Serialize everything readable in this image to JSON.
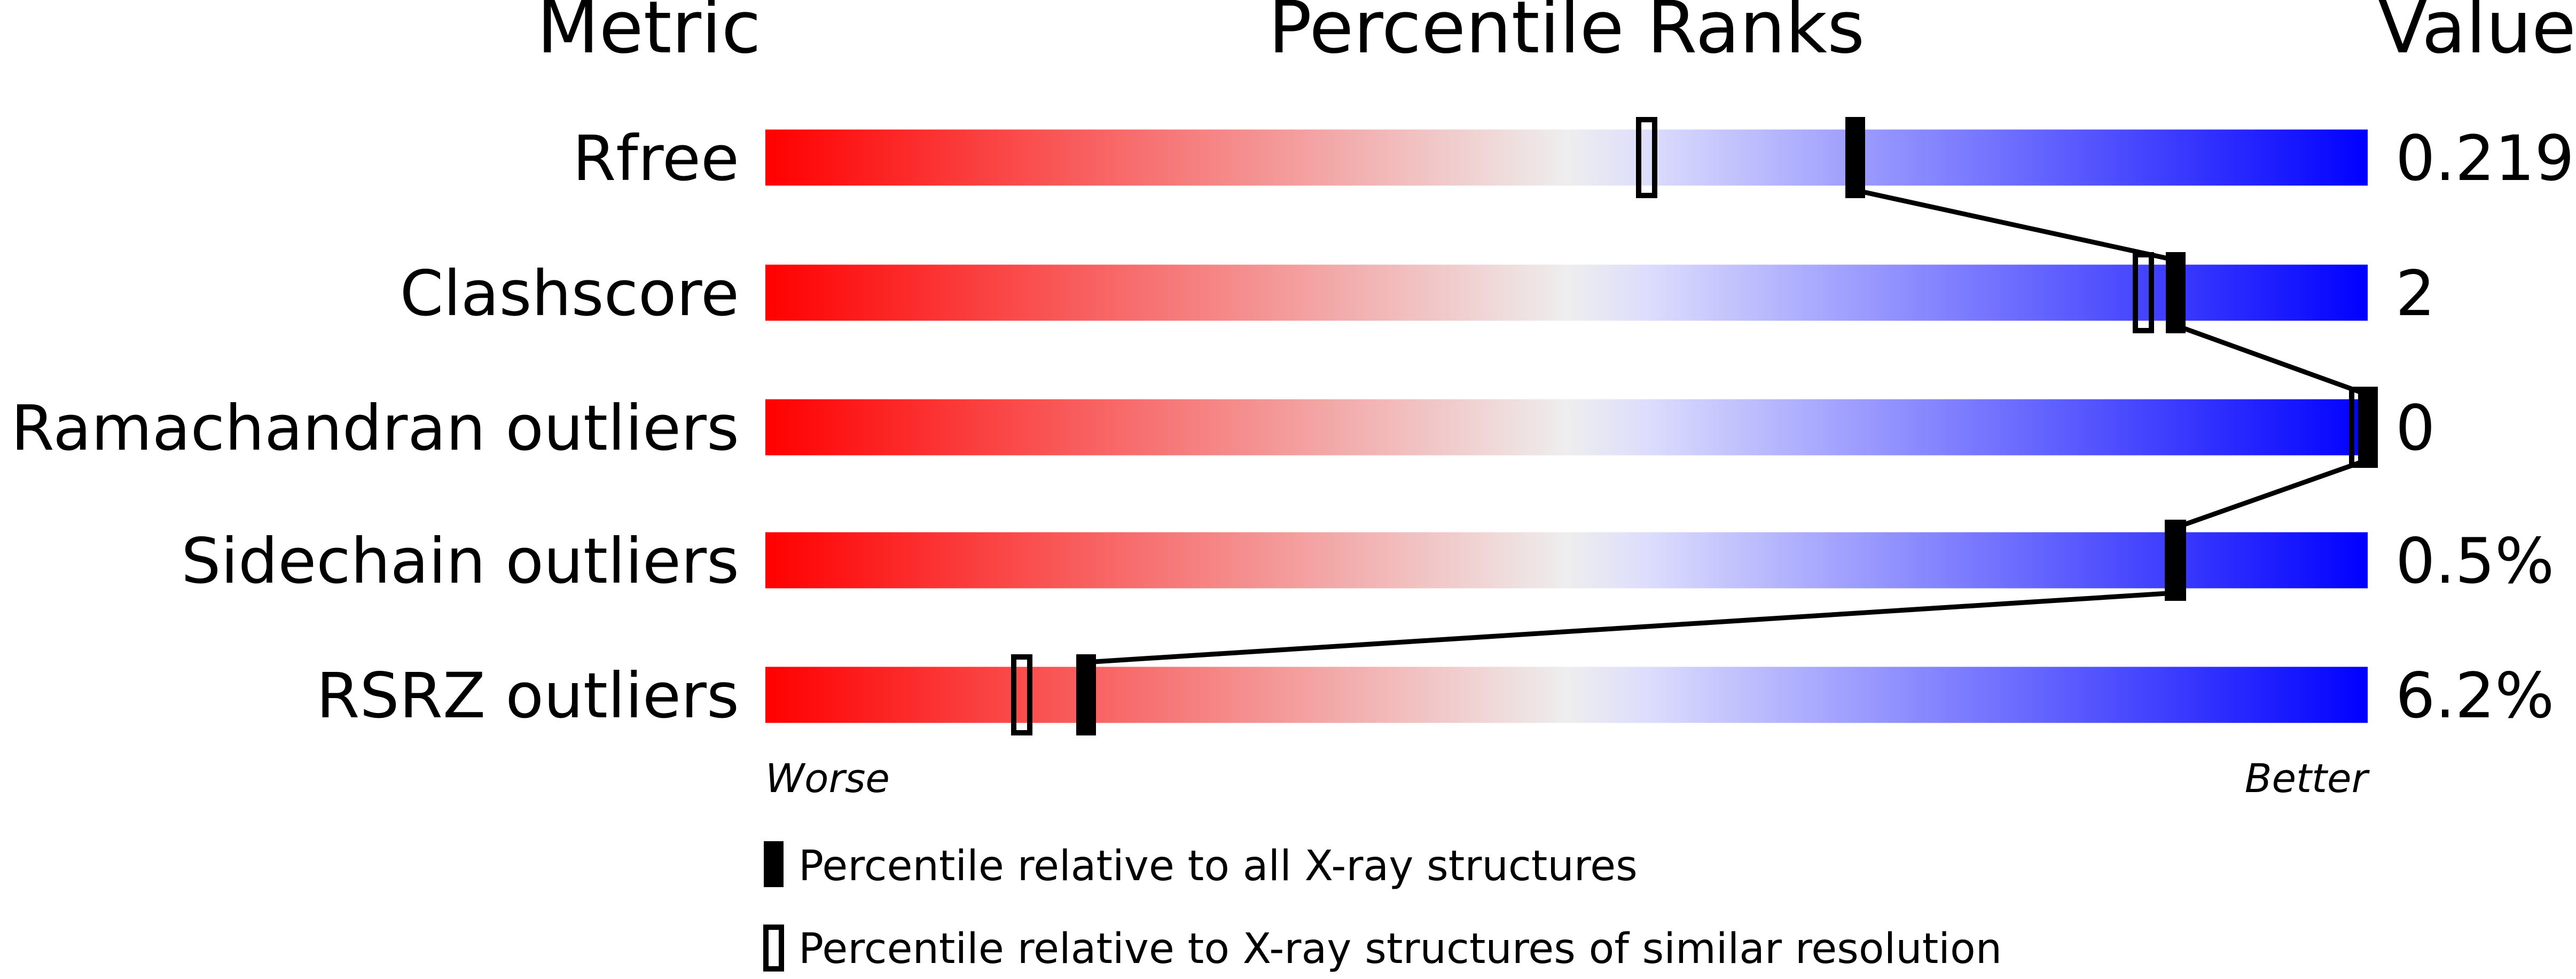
{
  "headers": {
    "metric": "Metric",
    "percentile": "Percentile Ranks",
    "value": "Value"
  },
  "scale_labels": {
    "worse": "Worse",
    "better": "Better"
  },
  "legend": {
    "all": "Percentile relative to all X-ray structures",
    "similar": "Percentile relative to X-ray structures of similar resolution"
  },
  "colors": {
    "worse": "#ff0000",
    "mid": "#eeeeee",
    "better": "#0000ff",
    "marker": "#000000"
  },
  "chart_data": {
    "type": "bar",
    "xlim": [
      0,
      100
    ],
    "categories": [
      "Rfree",
      "Clashscore",
      "Ramachandran outliers",
      "Sidechain outliers",
      "RSRZ outliers"
    ],
    "values_text": [
      "0.219",
      "2",
      "0",
      "0.5%",
      "6.2%"
    ],
    "series": [
      {
        "name": "Percentile relative to all X-ray structures",
        "values": [
          68,
          88,
          100,
          88,
          20
        ]
      },
      {
        "name": "Percentile relative to X-ray structures of similar resolution",
        "values": [
          55,
          86,
          100,
          88,
          16
        ]
      }
    ]
  }
}
